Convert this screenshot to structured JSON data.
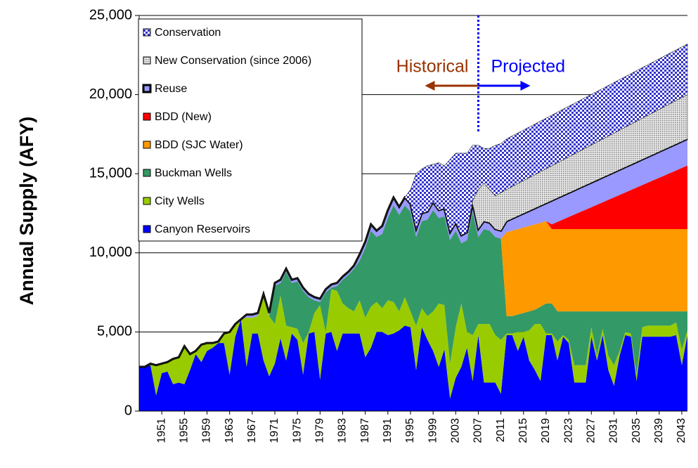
{
  "chart_data": {
    "type": "stacked-area",
    "y_label": "Annual Supply (AFY)",
    "x": [
      1947,
      1948,
      1949,
      1950,
      1951,
      1952,
      1953,
      1954,
      1955,
      1956,
      1957,
      1958,
      1959,
      1960,
      1961,
      1962,
      1963,
      1964,
      1965,
      1966,
      1967,
      1968,
      1969,
      1970,
      1971,
      1972,
      1973,
      1974,
      1975,
      1976,
      1977,
      1978,
      1979,
      1980,
      1981,
      1982,
      1983,
      1984,
      1985,
      1986,
      1987,
      1988,
      1989,
      1990,
      1991,
      1992,
      1993,
      1994,
      1995,
      1996,
      1997,
      1998,
      1999,
      2000,
      2001,
      2002,
      2003,
      2004,
      2005,
      2006,
      2007,
      2008,
      2009,
      2010,
      2011,
      2012,
      2013,
      2014,
      2015,
      2016,
      2017,
      2018,
      2019,
      2020,
      2021,
      2022,
      2023,
      2024,
      2025,
      2026,
      2027,
      2028,
      2029,
      2030,
      2031,
      2032,
      2033,
      2034,
      2035,
      2036,
      2037,
      2038,
      2039,
      2040,
      2041,
      2042,
      2043,
      2044
    ],
    "xlim": [
      1947,
      2044
    ],
    "xticks": [
      1951,
      1955,
      1959,
      1963,
      1967,
      1971,
      1975,
      1979,
      1983,
      1987,
      1991,
      1995,
      1999,
      2003,
      2007,
      2011,
      2015,
      2019,
      2023,
      2027,
      2031,
      2035,
      2039,
      2043
    ],
    "ylim": [
      0,
      25000
    ],
    "yticks": [
      0,
      {
        "value": 5000,
        "label": "5,000"
      },
      {
        "value": 10000,
        "label": "10,000"
      },
      {
        "value": 15000,
        "label": "15,000"
      },
      {
        "value": 20000,
        "label": "20,000"
      },
      {
        "value": 25000,
        "label": "25,000"
      }
    ],
    "grid": true,
    "legend": "upper left",
    "divider": 2007,
    "annotations": [
      {
        "text": "Historical",
        "color": "#993300"
      },
      {
        "text": "Projected",
        "color": "#0000ff"
      }
    ],
    "series": [
      {
        "name": "Canyon Reservoirs",
        "color": "#0000ff",
        "values": [
          2800,
          2800,
          2900,
          1000,
          2400,
          2500,
          1700,
          1800,
          1700,
          2600,
          3600,
          3100,
          3800,
          4000,
          4300,
          4300,
          2300,
          4700,
          5800,
          2800,
          4900,
          4900,
          3200,
          2200,
          3000,
          4600,
          3200,
          4900,
          4500,
          2300,
          4900,
          5000,
          2000,
          4900,
          5000,
          3800,
          4900,
          4900,
          4900,
          4900,
          3400,
          4000,
          5000,
          5000,
          4800,
          4900,
          5100,
          5400,
          5300,
          2600,
          5300,
          4500,
          3800,
          2800,
          3900,
          800,
          2100,
          2800,
          4000,
          1900,
          4800,
          1800,
          1800,
          1800,
          1100,
          4800,
          4800,
          3800,
          4700,
          3200,
          2600,
          1900,
          4800,
          4800,
          3200,
          4700,
          4300,
          1800,
          1800,
          1800,
          4700,
          3200,
          4800,
          2600,
          1600,
          3500,
          4800,
          4700,
          1900,
          4700,
          4700,
          4700,
          4700,
          4700,
          4700,
          4800,
          2900,
          4800
        ]
      },
      {
        "name": "City Wells",
        "color": "#99cc00",
        "values": [
          0,
          0,
          100,
          1900,
          600,
          600,
          1600,
          1600,
          2400,
          1000,
          200,
          1100,
          500,
          300,
          100,
          600,
          2700,
          800,
          0,
          3100,
          1000,
          1100,
          4000,
          3800,
          2500,
          2700,
          2200,
          400,
          700,
          2000,
          100,
          1200,
          4700,
          100,
          2700,
          3800,
          1900,
          1600,
          1400,
          2100,
          2500,
          2600,
          1900,
          1500,
          2200,
          2000,
          1200,
          1800,
          1000,
          2800,
          1200,
          1500,
          2500,
          4000,
          2800,
          2200,
          3200,
          4000,
          1000,
          2900,
          700,
          3700,
          3700,
          3000,
          3400,
          100,
          100,
          1200,
          300,
          1900,
          2900,
          3600,
          100,
          100,
          1200,
          100,
          200,
          1100,
          1100,
          1100,
          600,
          300,
          400,
          900,
          1300,
          300,
          200,
          200,
          400,
          600,
          700,
          700,
          700,
          700,
          700,
          800,
          1000,
          300
        ]
      },
      {
        "name": "Buckman Wells",
        "color": "#339966",
        "values": [
          0,
          0,
          0,
          0,
          0,
          0,
          0,
          0,
          0,
          0,
          0,
          0,
          0,
          0,
          0,
          0,
          0,
          0,
          0,
          0,
          0,
          0,
          0,
          0,
          2400,
          800,
          3400,
          2800,
          3000,
          3300,
          2200,
          800,
          200,
          2500,
          100,
          300,
          1500,
          2100,
          2700,
          2500,
          4400,
          4800,
          4100,
          4700,
          5200,
          6100,
          6100,
          5800,
          6300,
          5600,
          5500,
          6100,
          6400,
          5400,
          5600,
          7800,
          6100,
          3800,
          5800,
          7800,
          5500,
          6000,
          5900,
          6200,
          6400,
          1100,
          1100,
          1100,
          1200,
          1200,
          900,
          1100,
          1900,
          1900,
          1900,
          1500,
          1800,
          3400,
          3400,
          3400,
          1000,
          2800,
          1100,
          2800,
          3400,
          2500,
          1300,
          1400,
          4000,
          1000,
          900,
          900,
          900,
          900,
          900,
          700,
          2400,
          1200
        ]
      },
      {
        "name": "BDD (SJC Water)",
        "color": "#ff9900",
        "values": [
          0,
          0,
          0,
          0,
          0,
          0,
          0,
          0,
          0,
          0,
          0,
          0,
          0,
          0,
          0,
          0,
          0,
          0,
          0,
          0,
          0,
          0,
          0,
          0,
          0,
          0,
          0,
          0,
          0,
          0,
          0,
          0,
          0,
          0,
          0,
          0,
          0,
          0,
          0,
          0,
          0,
          0,
          0,
          0,
          0,
          0,
          0,
          0,
          0,
          0,
          0,
          0,
          0,
          0,
          0,
          0,
          0,
          0,
          0,
          0,
          0,
          0,
          0,
          0,
          0,
          5300,
          5400,
          5400,
          5400,
          5400,
          5400,
          5300,
          5200,
          4700,
          5200,
          5200,
          5200,
          5200,
          5200,
          5200,
          5200,
          5200,
          5200,
          5200,
          5200,
          5200,
          5200,
          5200,
          5200,
          5200,
          5200,
          5200,
          5200,
          5200,
          5200,
          5200,
          5200,
          5200
        ]
      },
      {
        "name": "BDD (New)",
        "color": "#ff0000",
        "values": [
          0,
          0,
          0,
          0,
          0,
          0,
          0,
          0,
          0,
          0,
          0,
          0,
          0,
          0,
          0,
          0,
          0,
          0,
          0,
          0,
          0,
          0,
          0,
          0,
          0,
          0,
          0,
          0,
          0,
          0,
          0,
          0,
          0,
          0,
          0,
          0,
          0,
          0,
          0,
          0,
          0,
          0,
          0,
          0,
          0,
          0,
          0,
          0,
          0,
          0,
          0,
          0,
          0,
          0,
          0,
          0,
          0,
          0,
          0,
          0,
          0,
          0,
          0,
          0,
          0,
          0,
          0,
          0,
          0,
          0,
          0,
          0,
          0,
          300,
          455,
          610,
          765,
          920,
          1075,
          1230,
          1385,
          1540,
          1695,
          1850,
          2005,
          2160,
          2315,
          2470,
          2625,
          2780,
          2935,
          3090,
          3245,
          3400,
          3555,
          3710,
          3865,
          4020
        ]
      },
      {
        "name": "Reuse",
        "color": "#9999ff",
        "outline": true,
        "values": [
          0,
          0,
          0,
          0,
          0,
          0,
          0,
          0,
          0,
          0,
          0,
          0,
          0,
          0,
          0,
          0,
          0,
          0,
          0,
          200,
          200,
          200,
          200,
          200,
          200,
          200,
          200,
          200,
          200,
          200,
          200,
          200,
          200,
          200,
          200,
          200,
          200,
          200,
          200,
          400,
          400,
          400,
          400,
          500,
          500,
          500,
          500,
          500,
          500,
          500,
          500,
          500,
          500,
          500,
          500,
          500,
          500,
          500,
          500,
          500,
          500,
          500,
          500,
          500,
          500,
          700,
          763,
          825,
          888,
          950,
          1013,
          1075,
          1138,
          1500,
          1508,
          1515,
          1523,
          1530,
          1538,
          1545,
          1553,
          1560,
          1568,
          1575,
          1583,
          1590,
          1598,
          1605,
          1613,
          1620,
          1628,
          1635,
          1643,
          1650,
          1658,
          1665,
          1673,
          1680
        ]
      },
      {
        "name": "New Conservation (since 2006)",
        "color": "#808080",
        "pattern": true,
        "values": [
          0,
          0,
          0,
          0,
          0,
          0,
          0,
          0,
          0,
          0,
          0,
          0,
          0,
          0,
          0,
          0,
          0,
          0,
          0,
          0,
          0,
          0,
          0,
          0,
          0,
          0,
          0,
          0,
          0,
          0,
          0,
          0,
          0,
          0,
          0,
          0,
          0,
          0,
          0,
          0,
          0,
          0,
          0,
          0,
          0,
          0,
          0,
          0,
          0,
          0,
          0,
          0,
          0,
          0,
          0,
          0,
          0,
          0,
          0,
          200,
          2500,
          2400,
          2100,
          2100,
          2400,
          2000,
          2025,
          2050,
          2075,
          2100,
          2125,
          2150,
          2175,
          2200,
          2225,
          2250,
          2275,
          2300,
          2325,
          2350,
          2375,
          2400,
          2425,
          2450,
          2475,
          2500,
          2525,
          2550,
          2575,
          2600,
          2625,
          2650,
          2675,
          2700,
          2725,
          2750,
          2775,
          2800
        ]
      },
      {
        "name": "Conservation",
        "color": "#3333cc",
        "pattern": true,
        "values": [
          0,
          0,
          0,
          0,
          0,
          0,
          0,
          0,
          0,
          0,
          0,
          0,
          0,
          0,
          0,
          0,
          0,
          0,
          0,
          0,
          0,
          0,
          0,
          0,
          0,
          0,
          0,
          0,
          0,
          0,
          0,
          0,
          0,
          0,
          0,
          0,
          0,
          0,
          0,
          0,
          0,
          0,
          0,
          0,
          0,
          0,
          0,
          0,
          900,
          3500,
          2800,
          2900,
          2400,
          3000,
          2700,
          4600,
          4400,
          5200,
          5000,
          3500,
          2800,
          2200,
          2600,
          3200,
          3100,
          3200,
          3200,
          3200,
          3200,
          3200,
          3200,
          3200,
          3200,
          3200,
          3200,
          3200,
          3200,
          3200,
          3200,
          3200,
          3200,
          3200,
          3200,
          3200,
          3200,
          3200,
          3200,
          3200,
          3200,
          3200,
          3200,
          3200,
          3200,
          3200,
          3200,
          3200,
          3200,
          3200
        ]
      }
    ]
  }
}
